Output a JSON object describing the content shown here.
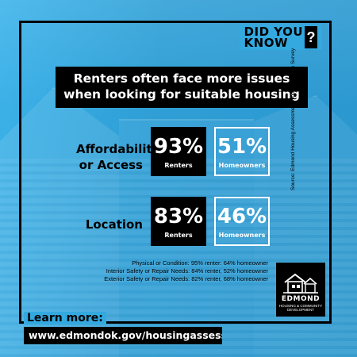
{
  "badge": {
    "line1": "DID YOU",
    "line2": "KNOW",
    "mark": "?"
  },
  "headline": {
    "line1": "Renters often face more issues",
    "line2": "when looking for suitable housing"
  },
  "rows": [
    {
      "label_line1": "Affordability",
      "label_line2": "or Access",
      "renters_pct": "93%",
      "renters_label": "Renters",
      "owners_pct": "51%",
      "owners_label": "Homeowners"
    },
    {
      "label_line1": "Location",
      "renters_pct": "83%",
      "renters_label": "Renters",
      "owners_pct": "46%",
      "owners_label": "Homeowners"
    }
  ],
  "notes": [
    "Physical or Condition: 95% renter: 64% homeowner",
    "Interior Safety or Repair Needs: 84% renter, 52% homeowner",
    "Exterior Safety or Repair Needs: 82% renter, 68% homeowner"
  ],
  "logo": {
    "name": "EDMOND",
    "sub1": "HOUSING & COMMUNITY",
    "sub2": "DEVELOPMENT",
    "icon": "house-logo-icon"
  },
  "source": "Source: Edmond Housing Assessment Housing Needs Survey",
  "learn_more": "Learn more:",
  "url": "www.edmondok.gov/housingassessment",
  "colors": {
    "background": "#33a9e0",
    "box_dark": "#000000",
    "text_light": "#ffffff"
  }
}
